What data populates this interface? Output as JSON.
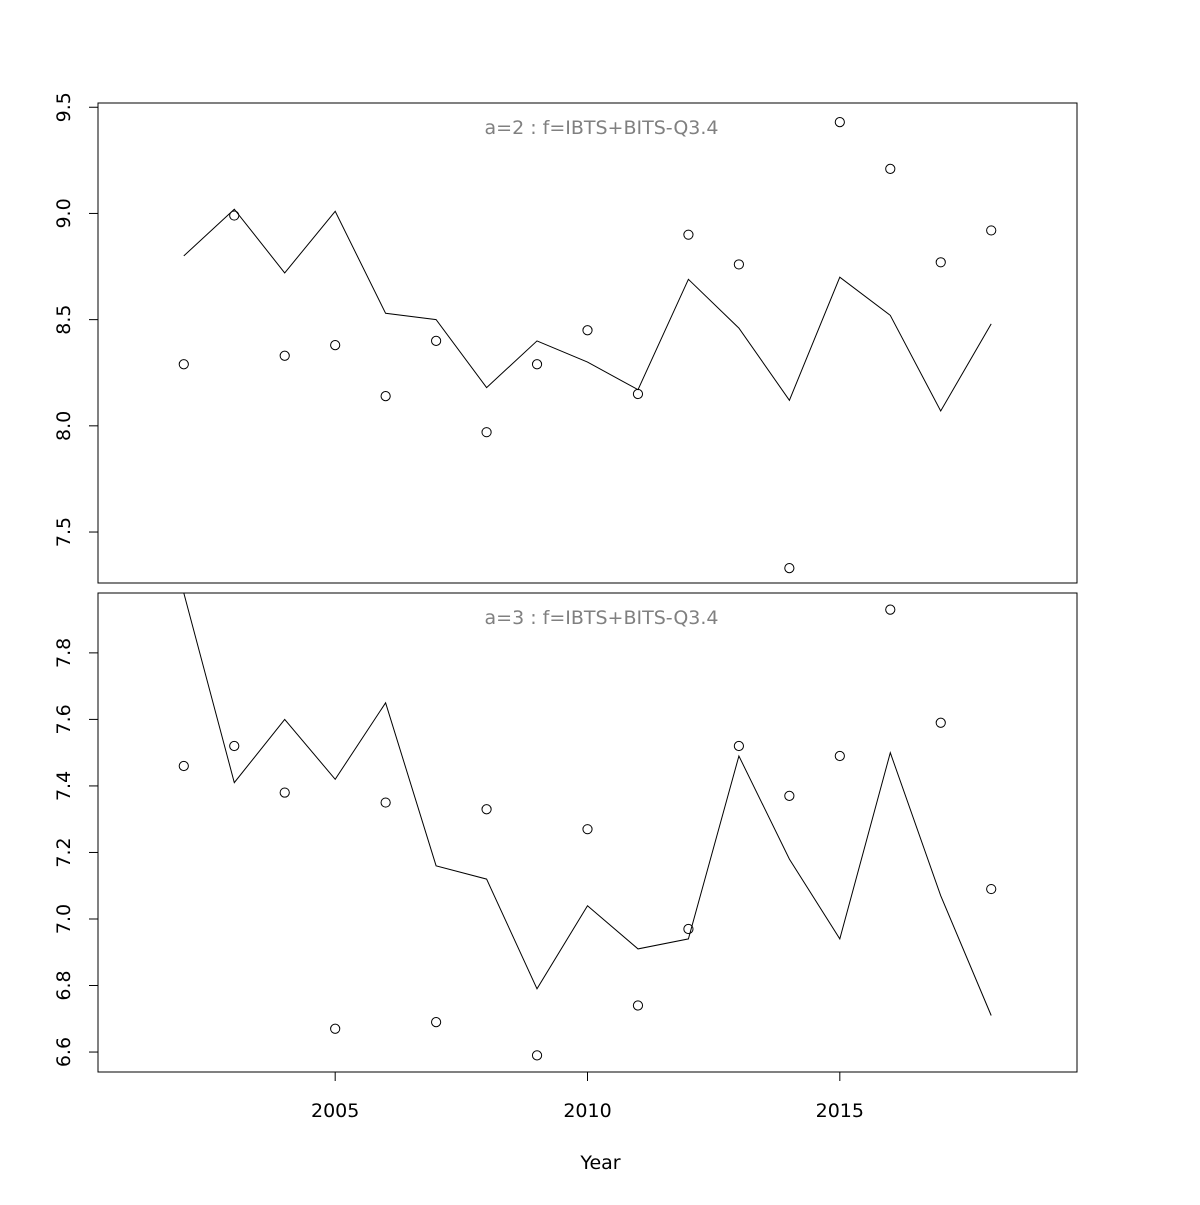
{
  "chart_data": {
    "type": "line",
    "xlabel": "Year",
    "x_ticks": [
      2005,
      2010,
      2015
    ],
    "xlim": [
      2000.3,
      2019.7
    ],
    "panels": [
      {
        "label": "a=2  :  f=IBTS+BITS-Q3.4",
        "ylim": [
          7.26,
          9.52
        ],
        "y_ticks": [
          "7.5",
          "8.0",
          "8.5",
          "9.0",
          "9.5"
        ],
        "x": [
          2002,
          2003,
          2004,
          2005,
          2006,
          2007,
          2008,
          2009,
          2010,
          2011,
          2012,
          2013,
          2014,
          2015,
          2016,
          2017,
          2018
        ],
        "observed": [
          8.29,
          8.99,
          8.33,
          8.38,
          8.14,
          8.4,
          7.97,
          8.29,
          8.45,
          8.15,
          8.9,
          8.76,
          7.33,
          9.43,
          9.21,
          8.77,
          8.92
        ],
        "fitted": [
          8.8,
          9.02,
          8.72,
          9.01,
          8.53,
          8.5,
          8.18,
          8.4,
          8.3,
          8.17,
          8.69,
          8.46,
          8.12,
          8.7,
          8.52,
          8.07,
          8.48
        ]
      },
      {
        "label": "a=3  :  f=IBTS+BITS-Q3.4",
        "ylim": [
          6.54,
          7.98
        ],
        "y_ticks": [
          "6.6",
          "6.8",
          "7.0",
          "7.2",
          "7.4",
          "7.6",
          "7.8"
        ],
        "x": [
          2002,
          2003,
          2004,
          2005,
          2006,
          2007,
          2008,
          2009,
          2010,
          2011,
          2012,
          2013,
          2014,
          2015,
          2016,
          2017,
          2018
        ],
        "observed": [
          7.46,
          7.52,
          7.38,
          6.67,
          7.35,
          6.69,
          7.33,
          6.59,
          7.27,
          6.74,
          6.97,
          7.52,
          7.37,
          7.49,
          7.93,
          7.59,
          7.09
        ],
        "fitted": [
          7.98,
          7.41,
          7.6,
          7.42,
          7.65,
          7.16,
          7.12,
          6.79,
          7.04,
          6.91,
          6.94,
          7.49,
          7.18,
          6.94,
          7.5,
          7.07,
          6.71
        ]
      }
    ]
  }
}
